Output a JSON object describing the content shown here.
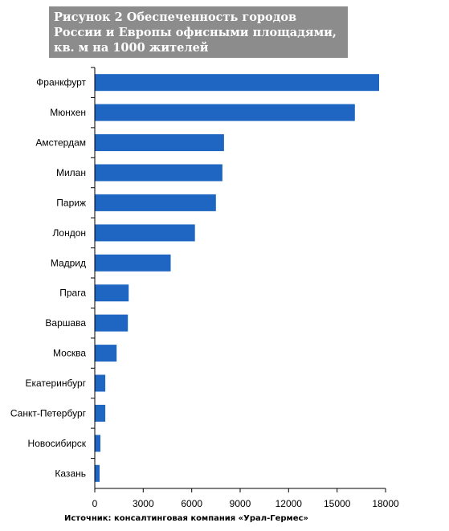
{
  "chart_data": {
    "type": "bar",
    "orientation": "horizontal",
    "title": "Рисунок 2 Обеспеченность городов России и Европы офисными площадями, кв. м на 1000 жителей",
    "categories": [
      "Франкфурт",
      "Мюнхен",
      "Амстердам",
      "Милан",
      "Париж",
      "Лондон",
      "Мадрид",
      "Прага",
      "Варшава",
      "Москва",
      "Екатеринбург",
      "Санкт-Петербург",
      "Новосибирск",
      "Казань"
    ],
    "values": [
      17600,
      16100,
      8000,
      7900,
      7500,
      6200,
      4700,
      2100,
      2050,
      1350,
      650,
      650,
      350,
      300
    ],
    "xlim": [
      0,
      18000
    ],
    "xticks": [
      0,
      3000,
      6000,
      9000,
      12000,
      15000,
      18000
    ],
    "bar_color": "#1f66c2",
    "grid": false,
    "source": "Источник: консалтинговая компания «Урал-Гермес»"
  }
}
